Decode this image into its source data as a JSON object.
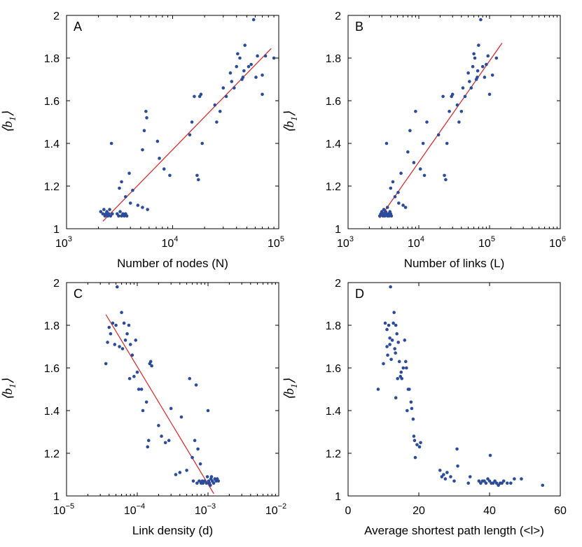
{
  "colors": {
    "points": "#2b4b9b",
    "fit_line": "#e02020",
    "axes": "#000000"
  },
  "chart_data": [
    {
      "type": "scatter",
      "panel": "A",
      "xscale": "log",
      "xlim": [
        1000,
        100000
      ],
      "ylim": [
        1,
        2
      ],
      "xticks": [
        1000,
        10000,
        100000
      ],
      "xtick_labels": [
        {
          "base": "10",
          "exp": "3"
        },
        {
          "base": "10",
          "exp": "4"
        },
        {
          "base": "10",
          "exp": "5"
        }
      ],
      "yticks": [
        1,
        1.2,
        1.4,
        1.6,
        1.8,
        2
      ],
      "ytick_labels": [
        "1",
        "1.2",
        "1.4",
        "1.6",
        "1.8",
        "2"
      ],
      "xlabel": "Number of nodes (N)",
      "ylabel": {
        "text": "⟨b",
        "sub": "1",
        "close": "⟩"
      },
      "fit_line": {
        "x": [
          2200,
          85000
        ],
        "y": [
          1.035,
          1.845
        ]
      },
      "points": [
        [
          2100,
          1.08
        ],
        [
          2200,
          1.07
        ],
        [
          2250,
          1.09
        ],
        [
          2300,
          1.06
        ],
        [
          2350,
          1.07
        ],
        [
          2400,
          1.08
        ],
        [
          2450,
          1.06
        ],
        [
          2500,
          1.07
        ],
        [
          2550,
          1.09
        ],
        [
          2600,
          1.06
        ],
        [
          2700,
          1.07
        ],
        [
          2650,
          1.4
        ],
        [
          3000,
          1.07
        ],
        [
          3100,
          1.06
        ],
        [
          3200,
          1.08
        ],
        [
          3300,
          1.06
        ],
        [
          3400,
          1.07
        ],
        [
          3500,
          1.06
        ],
        [
          3600,
          1.07
        ],
        [
          3700,
          1.06
        ],
        [
          3150,
          1.19
        ],
        [
          3300,
          1.22
        ],
        [
          3600,
          1.15
        ],
        [
          3900,
          1.26
        ],
        [
          4200,
          1.18
        ],
        [
          4000,
          1.12
        ],
        [
          4700,
          1.11
        ],
        [
          5200,
          1.1
        ],
        [
          5200,
          1.37
        ],
        [
          5400,
          1.46
        ],
        [
          5700,
          1.52
        ],
        [
          5600,
          1.55
        ],
        [
          5800,
          1.09
        ],
        [
          7200,
          1.41
        ],
        [
          7500,
          1.33
        ],
        [
          8300,
          1.28
        ],
        [
          9400,
          1.25
        ],
        [
          14500,
          1.44
        ],
        [
          15200,
          1.5
        ],
        [
          16000,
          1.62
        ],
        [
          17000,
          1.25
        ],
        [
          17500,
          1.23
        ],
        [
          18000,
          1.62
        ],
        [
          18500,
          1.63
        ],
        [
          19000,
          1.4
        ],
        [
          25000,
          1.58
        ],
        [
          26000,
          1.5
        ],
        [
          28000,
          1.55
        ],
        [
          30000,
          1.66
        ],
        [
          32000,
          1.62
        ],
        [
          35000,
          1.73
        ],
        [
          36000,
          1.69
        ],
        [
          38000,
          1.66
        ],
        [
          40000,
          1.76
        ],
        [
          41000,
          1.82
        ],
        [
          43000,
          1.8
        ],
        [
          45000,
          1.7
        ],
        [
          46000,
          1.71
        ],
        [
          47000,
          1.74
        ],
        [
          48000,
          1.86
        ],
        [
          52000,
          1.76
        ],
        [
          55000,
          1.77
        ],
        [
          58000,
          1.98
        ],
        [
          61000,
          1.71
        ],
        [
          63000,
          1.81
        ],
        [
          70000,
          1.63
        ],
        [
          70000,
          1.72
        ],
        [
          75000,
          1.81
        ],
        [
          90000,
          1.8
        ]
      ]
    },
    {
      "type": "scatter",
      "panel": "B",
      "xscale": "log",
      "xlim": [
        1000,
        1000000
      ],
      "ylim": [
        1,
        2
      ],
      "xticks": [
        1000,
        10000,
        100000,
        1000000
      ],
      "xtick_labels": [
        {
          "base": "10",
          "exp": "3"
        },
        {
          "base": "10",
          "exp": "4"
        },
        {
          "base": "10",
          "exp": "5"
        },
        {
          "base": "10",
          "exp": "6"
        }
      ],
      "yticks": [
        1,
        1.2,
        1.4,
        1.6,
        1.8,
        2
      ],
      "ytick_labels": [
        "1",
        "1.2",
        "1.4",
        "1.6",
        "1.8",
        "2"
      ],
      "xlabel": "Number of links (L)",
      "ylabel": {
        "text": "⟨b",
        "sub": "1",
        "close": "⟩"
      },
      "fit_line": {
        "x": [
          2800,
          150000
        ],
        "y": [
          1.05,
          1.87
        ]
      },
      "points": [
        [
          2800,
          1.06
        ],
        [
          2900,
          1.07
        ],
        [
          3000,
          1.08
        ],
        [
          3100,
          1.06
        ],
        [
          3200,
          1.07
        ],
        [
          3300,
          1.06
        ],
        [
          3400,
          1.08
        ],
        [
          3500,
          1.07
        ],
        [
          3600,
          1.06
        ],
        [
          3700,
          1.07
        ],
        [
          3800,
          1.06
        ],
        [
          3900,
          1.08
        ],
        [
          4000,
          1.07
        ],
        [
          4100,
          1.06
        ],
        [
          3200,
          1.09
        ],
        [
          3600,
          1.1
        ],
        [
          3500,
          1.4
        ],
        [
          4000,
          1.19
        ],
        [
          4300,
          1.22
        ],
        [
          4600,
          1.15
        ],
        [
          5100,
          1.17
        ],
        [
          5200,
          1.12
        ],
        [
          5600,
          1.26
        ],
        [
          6000,
          1.11
        ],
        [
          6500,
          1.1
        ],
        [
          7000,
          1.36
        ],
        [
          7500,
          1.46
        ],
        [
          8500,
          1.31
        ],
        [
          9000,
          1.55
        ],
        [
          10500,
          1.28
        ],
        [
          11500,
          1.4
        ],
        [
          12000,
          1.25
        ],
        [
          13000,
          1.5
        ],
        [
          19000,
          1.44
        ],
        [
          22000,
          1.62
        ],
        [
          23000,
          1.25
        ],
        [
          24000,
          1.23
        ],
        [
          25000,
          1.4
        ],
        [
          27000,
          1.55
        ],
        [
          29000,
          1.62
        ],
        [
          30000,
          1.63
        ],
        [
          35000,
          1.58
        ],
        [
          37000,
          1.5
        ],
        [
          40000,
          1.55
        ],
        [
          42000,
          1.66
        ],
        [
          45000,
          1.62
        ],
        [
          50000,
          1.73
        ],
        [
          52000,
          1.69
        ],
        [
          55000,
          1.66
        ],
        [
          58000,
          1.76
        ],
        [
          60000,
          1.82
        ],
        [
          62000,
          1.8
        ],
        [
          65000,
          1.7
        ],
        [
          67000,
          1.71
        ],
        [
          68000,
          1.74
        ],
        [
          70000,
          1.86
        ],
        [
          75000,
          1.98
        ],
        [
          80000,
          1.76
        ],
        [
          85000,
          1.71
        ],
        [
          90000,
          1.77
        ],
        [
          95000,
          1.81
        ],
        [
          100000,
          1.63
        ],
        [
          110000,
          1.72
        ],
        [
          125000,
          1.8
        ]
      ]
    },
    {
      "type": "scatter",
      "panel": "C",
      "xscale": "log",
      "xlim": [
        1e-05,
        0.01
      ],
      "ylim": [
        1,
        2
      ],
      "xticks": [
        1e-05,
        0.0001,
        0.001,
        0.01
      ],
      "xtick_labels": [
        {
          "base": "10",
          "exp": "−5"
        },
        {
          "base": "10",
          "exp": "−4"
        },
        {
          "base": "10",
          "exp": "−3"
        },
        {
          "base": "10",
          "exp": "−2"
        }
      ],
      "yticks": [
        1,
        1.2,
        1.4,
        1.6,
        1.8,
        2
      ],
      "ytick_labels": [
        "1",
        "1.2",
        "1.4",
        "1.6",
        "1.8",
        "2"
      ],
      "xlabel": "Link density (d)",
      "ylabel": {
        "text": "⟨b",
        "sub": "1",
        "close": "⟩"
      },
      "fit_line": {
        "x": [
          3.6e-05,
          0.00121
        ],
        "y": [
          1.85,
          1.01
        ]
      },
      "points": [
        [
          3.6e-05,
          1.62
        ],
        [
          3.8e-05,
          1.72
        ],
        [
          4e-05,
          1.79
        ],
        [
          4.2e-05,
          1.76
        ],
        [
          4.5e-05,
          1.81
        ],
        [
          4.8e-05,
          1.71
        ],
        [
          5e-05,
          1.8
        ],
        [
          5.2e-05,
          1.98
        ],
        [
          5.6e-05,
          1.7
        ],
        [
          6e-05,
          1.86
        ],
        [
          6.2e-05,
          1.69
        ],
        [
          6.5e-05,
          1.81
        ],
        [
          6.8e-05,
          1.73
        ],
        [
          7.2e-05,
          1.76
        ],
        [
          7.6e-05,
          1.8
        ],
        [
          7.8e-05,
          1.55
        ],
        [
          8e-05,
          1.71
        ],
        [
          8.5e-05,
          1.66
        ],
        [
          9e-05,
          1.56
        ],
        [
          9.5e-05,
          1.73
        ],
        [
          0.0001,
          1.58
        ],
        [
          0.000105,
          1.5
        ],
        [
          0.000115,
          1.5
        ],
        [
          0.00012,
          1.4
        ],
        [
          0.000135,
          1.44
        ],
        [
          0.00014,
          1.23
        ],
        [
          0.000145,
          1.26
        ],
        [
          0.00015,
          1.62
        ],
        [
          0.000155,
          1.63
        ],
        [
          0.00016,
          1.61
        ],
        [
          0.0002,
          1.33
        ],
        [
          0.00022,
          1.28
        ],
        [
          0.00025,
          1.25
        ],
        [
          0.00028,
          1.26
        ],
        [
          0.0003,
          1.41
        ],
        [
          0.00035,
          1.1
        ],
        [
          0.0004,
          1.11
        ],
        [
          0.00042,
          1.37
        ],
        [
          0.0005,
          1.12
        ],
        [
          0.00055,
          1.55
        ],
        [
          0.0006,
          1.18
        ],
        [
          0.00062,
          1.07
        ],
        [
          0.00065,
          1.26
        ],
        [
          0.00068,
          1.52
        ],
        [
          0.0007,
          1.06
        ],
        [
          0.00072,
          1.22
        ],
        [
          0.00075,
          1.07
        ],
        [
          0.00078,
          1.15
        ],
        [
          0.0008,
          1.06
        ],
        [
          0.00083,
          1.07
        ],
        [
          0.00085,
          1.06
        ],
        [
          0.0009,
          1.07
        ],
        [
          0.00095,
          1.06
        ],
        [
          0.001,
          1.4
        ],
        [
          0.00102,
          1.07
        ],
        [
          0.00105,
          1.06
        ],
        [
          0.0011,
          1.08
        ],
        [
          0.00115,
          1.07
        ],
        [
          0.0012,
          1.06
        ],
        [
          0.00125,
          1.08
        ],
        [
          0.0013,
          1.07
        ],
        [
          0.00135,
          1.08
        ],
        [
          0.0014,
          1.07
        ],
        [
          0.00098,
          1.09
        ],
        [
          0.00108,
          1.05
        ],
        [
          0.00112,
          1.09
        ]
      ]
    },
    {
      "type": "scatter",
      "panel": "D",
      "xscale": "linear",
      "xlim": [
        0,
        60
      ],
      "ylim": [
        1,
        2
      ],
      "xticks": [
        0,
        20,
        40,
        60
      ],
      "xtick_labels": [
        {
          "base": "0",
          "exp": ""
        },
        {
          "base": "20",
          "exp": ""
        },
        {
          "base": "40",
          "exp": ""
        },
        {
          "base": "60",
          "exp": ""
        }
      ],
      "yticks": [
        1,
        1.2,
        1.4,
        1.6,
        1.8,
        2
      ],
      "ytick_labels": [
        "1",
        "1.2",
        "1.4",
        "1.6",
        "1.8",
        "2"
      ],
      "xlabel": "Average shortest path length (<l>)",
      "ylabel": {
        "text": "⟨b",
        "sub": "1",
        "close": "⟩"
      },
      "fit_line": null,
      "points": [
        [
          8.5,
          1.5
        ],
        [
          10,
          1.62
        ],
        [
          10.5,
          1.81
        ],
        [
          11,
          1.7
        ],
        [
          11.2,
          1.66
        ],
        [
          11.5,
          1.8
        ],
        [
          11.8,
          1.74
        ],
        [
          12,
          1.98
        ],
        [
          12.2,
          1.64
        ],
        [
          12.5,
          1.73
        ],
        [
          12.8,
          1.81
        ],
        [
          13,
          1.86
        ],
        [
          13.2,
          1.69
        ],
        [
          13.4,
          1.67
        ],
        [
          13.5,
          1.8
        ],
        [
          13.8,
          1.76
        ],
        [
          14,
          1.55
        ],
        [
          14.2,
          1.72
        ],
        [
          14.5,
          1.63
        ],
        [
          14.8,
          1.56
        ],
        [
          15,
          1.58
        ],
        [
          15.2,
          1.55
        ],
        [
          15.6,
          1.6
        ],
        [
          16,
          1.73
        ],
        [
          16.3,
          1.63
        ],
        [
          16.5,
          1.6
        ],
        [
          11,
          1.78
        ],
        [
          11.8,
          1.71
        ],
        [
          13.5,
          1.46
        ],
        [
          17,
          1.5
        ],
        [
          17.3,
          1.5
        ],
        [
          16.7,
          1.4
        ],
        [
          17.8,
          1.44
        ],
        [
          18,
          1.41
        ],
        [
          18.4,
          1.36
        ],
        [
          18.6,
          1.28
        ],
        [
          18.8,
          1.26
        ],
        [
          19,
          1.18
        ],
        [
          19.5,
          1.24
        ],
        [
          20.2,
          1.23
        ],
        [
          20.5,
          1.25
        ],
        [
          26,
          1.12
        ],
        [
          26.5,
          1.09
        ],
        [
          27,
          1.1
        ],
        [
          27.5,
          1.08
        ],
        [
          28,
          1.11
        ],
        [
          29,
          1.09
        ],
        [
          30,
          1.07
        ],
        [
          30.8,
          1.22
        ],
        [
          31,
          1.14
        ],
        [
          34,
          1.06
        ],
        [
          34.5,
          1.09
        ],
        [
          37,
          1.07
        ],
        [
          37.5,
          1.06
        ],
        [
          38,
          1.07
        ],
        [
          38.5,
          1.07
        ],
        [
          39,
          1.06
        ],
        [
          39.5,
          1.08
        ],
        [
          40,
          1.07
        ],
        [
          40.5,
          1.06
        ],
        [
          40.2,
          1.19
        ],
        [
          41,
          1.06
        ],
        [
          41.5,
          1.07
        ],
        [
          42,
          1.06
        ],
        [
          42.5,
          1.05
        ],
        [
          43,
          1.06
        ],
        [
          43.5,
          1.06
        ],
        [
          44,
          1.07
        ],
        [
          45,
          1.06
        ],
        [
          46,
          1.06
        ],
        [
          47,
          1.08
        ],
        [
          49,
          1.08
        ],
        [
          55,
          1.05
        ]
      ]
    }
  ]
}
